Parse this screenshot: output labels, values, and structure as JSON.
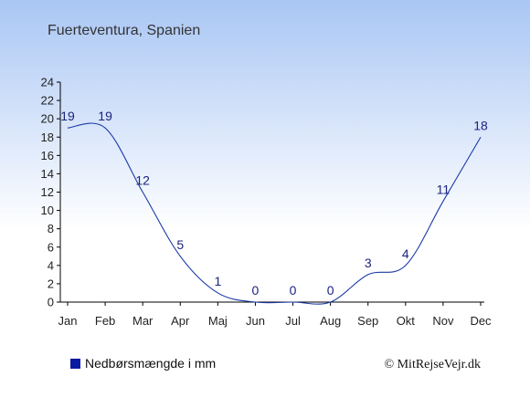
{
  "title": "Fuerteventura, Spanien",
  "legend_label": "Nedbørsmængde i mm",
  "credit": "© MitRejseVejr.dk",
  "colors": {
    "line": "#1a3aa8",
    "legend_marker": "#0a1aa0",
    "bg_top": "#a9c6f4",
    "bg_bottom": "#ffffff"
  },
  "chart_data": {
    "type": "line",
    "categories": [
      "Jan",
      "Feb",
      "Mar",
      "Apr",
      "Maj",
      "Jun",
      "Jul",
      "Aug",
      "Sep",
      "Okt",
      "Nov",
      "Dec"
    ],
    "series": [
      {
        "name": "Nedbørsmængde i mm",
        "values": [
          19,
          19,
          12,
          5,
          1,
          0,
          0,
          0,
          3,
          4,
          11,
          18
        ]
      }
    ],
    "ylim": [
      0,
      24
    ],
    "yticks": [
      0,
      2,
      4,
      6,
      8,
      10,
      12,
      14,
      16,
      18,
      20,
      22,
      24
    ],
    "grid": false,
    "legend_position": "bottom-left"
  }
}
